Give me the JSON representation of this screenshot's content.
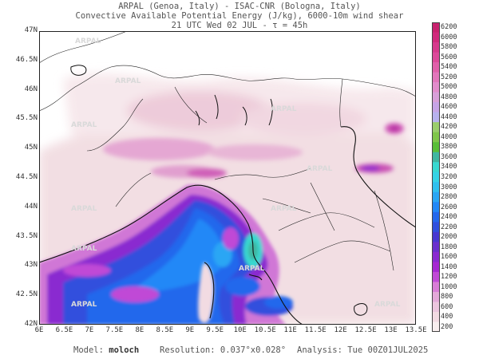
{
  "header": {
    "line1": "ARPAL (Genoa, Italy)  -  ISAC-CNR (Bologna, Italy)",
    "line2": "Convective Available Potential Energy (J/kg), 6000-10m wind shear",
    "line3": "21 UTC Wed 02 JUL   -   τ = 45h"
  },
  "footer": {
    "model_label": "Model:",
    "model_value": "moloch",
    "resolution_label": "Resolution:",
    "resolution_value": "0.037°x0.028°",
    "analysis_label": "Analysis:",
    "analysis_value": "Tue 00Z01JUL2025"
  },
  "watermark": "ARPAL",
  "map": {
    "lat_labels": [
      "47N",
      "46.5N",
      "46N",
      "45.5N",
      "45N",
      "44.5N",
      "44N",
      "43.5N",
      "43N",
      "42.5N",
      "42N"
    ],
    "lon_labels": [
      "6E",
      "6.5E",
      "7E",
      "7.5E",
      "8E",
      "8.5E",
      "9E",
      "9.5E",
      "10E",
      "10.5E",
      "11E",
      "11.5E",
      "12E",
      "12.5E",
      "13E",
      "13.5E"
    ]
  },
  "colorbar": {
    "labels": [
      "6200",
      "6000",
      "5800",
      "5600",
      "5400",
      "5200",
      "5000",
      "4800",
      "4600",
      "4400",
      "4200",
      "4000",
      "3800",
      "3600",
      "3400",
      "3200",
      "3000",
      "2800",
      "2600",
      "2400",
      "2200",
      "2000",
      "1800",
      "1600",
      "1400",
      "1200",
      "1000",
      "800",
      "600",
      "400",
      "200"
    ],
    "colors": [
      "#c8226e",
      "#d02a7c",
      "#d63a8c",
      "#dc4a9a",
      "#e060aa",
      "#e276bb",
      "#e28ccb",
      "#d89fd8",
      "#c6a4e6",
      "#b7b1ee",
      "#9acd6c",
      "#7fc64a",
      "#58be37",
      "#3fb6a0",
      "#38d8d0",
      "#35d3e5",
      "#30c0ee",
      "#2aa6f4",
      "#2288f7",
      "#2468ec",
      "#3050dd",
      "#4838d0",
      "#6a30cc",
      "#8a2ad0",
      "#a628d2",
      "#c04ad6",
      "#d87dd6",
      "#e3a9d8",
      "#ecc6de",
      "#f2dbe2",
      "#f8eeee"
    ]
  }
}
